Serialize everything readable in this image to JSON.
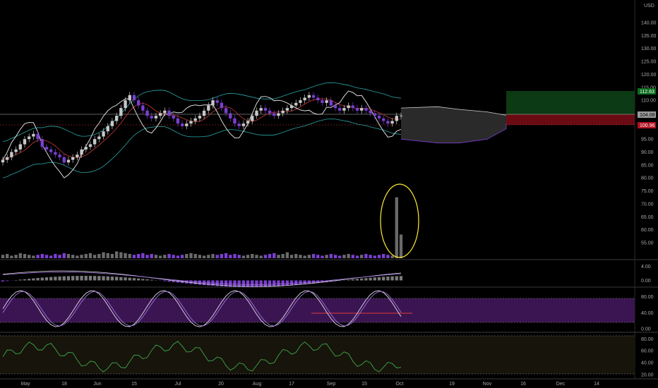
{
  "currency": "USD",
  "price_axis": {
    "ticks": [
      "140.00",
      "135.00",
      "130.00",
      "125.00",
      "120.00",
      "115.00",
      "110.00",
      "105.00",
      "100.00",
      "95.00",
      "90.00",
      "85.00",
      "80.00",
      "75.00",
      "70.00",
      "65.00",
      "60.00",
      "55.00"
    ],
    "range": [
      52,
      146
    ]
  },
  "price_tags": {
    "target": "112.63",
    "current": "104.08",
    "stop": "100.96"
  },
  "macd_axis": {
    "ticks": [
      "4.00",
      "0.00"
    ]
  },
  "stoch_axis": {
    "ticks": [
      "80.00",
      "40.00",
      "0.00"
    ]
  },
  "rsi_axis": {
    "ticks": [
      "80.00",
      "60.00",
      "40.00",
      "20.00"
    ]
  },
  "time_axis": {
    "labels": [
      "May",
      "18",
      "Jun",
      "15",
      "Jul",
      "20",
      "Aug",
      "17",
      "Sep",
      "15",
      "Oct",
      "19",
      "Nov",
      "16",
      "Dec",
      "14"
    ]
  },
  "colors": {
    "up": "#c8c8c8",
    "down": "#7b3fd1",
    "bb_upper": "#2aa7a7",
    "bb_lower": "#2aa7a7",
    "base_line": "#c83a3a",
    "conversion": "#d8d8d8",
    "cloud": "#2a2a2a",
    "profit_zone": "#0b3a14",
    "loss_zone": "#6a0b14",
    "stoch_band": "#3b1552",
    "rsi_band": "#17140b",
    "rsi_line": "#3ea84a",
    "annotation": "#ffee33"
  },
  "chart_data": [
    {
      "type": "candlestick",
      "title": "",
      "currency": "USD",
      "x_labels": [
        "May",
        "18",
        "Jun",
        "15",
        "Jul",
        "20",
        "Aug",
        "17",
        "Sep",
        "15",
        "Oct"
      ],
      "close_series": [
        87,
        88,
        90,
        91,
        93,
        95,
        96,
        97,
        95,
        92,
        91,
        90,
        89,
        88,
        86,
        87,
        88,
        89,
        91,
        92,
        93,
        95,
        96,
        98,
        100,
        102,
        104,
        107,
        110,
        112,
        110,
        108,
        106,
        104,
        103,
        104,
        105,
        106,
        104,
        103,
        101,
        100,
        101,
        102,
        103,
        104,
        106,
        108,
        110,
        109,
        107,
        105,
        103,
        101,
        100,
        101,
        102,
        104,
        106,
        107,
        106,
        105,
        104,
        105,
        106,
        107,
        108,
        109,
        110,
        111,
        112,
        111,
        110,
        109,
        110,
        108,
        107,
        106,
        107,
        108,
        107,
        106,
        107,
        106,
        105,
        104,
        103,
        102,
        101,
        102,
        104,
        104.08
      ],
      "trade_levels": {
        "target": 112.63,
        "entry": 104.08,
        "stop": 100.96
      },
      "ylim": [
        52,
        146
      ]
    },
    {
      "type": "bar",
      "name": "volume",
      "values": [
        4,
        5,
        3,
        4,
        6,
        5,
        4,
        3,
        4,
        5,
        4,
        3,
        5,
        4,
        6,
        5,
        4,
        3,
        4,
        5,
        6,
        4,
        5,
        7,
        6,
        5,
        8,
        7,
        6,
        5,
        4,
        5,
        6,
        4,
        5,
        4,
        3,
        4,
        5,
        4,
        3,
        4,
        5,
        6,
        5,
        4,
        3,
        4,
        5,
        4,
        5,
        6,
        4,
        5,
        4,
        3,
        4,
        5,
        4,
        3,
        4,
        5,
        6,
        4,
        5,
        7,
        4,
        5,
        4,
        3,
        4,
        5,
        4,
        3,
        4,
        5,
        4,
        3,
        4,
        5,
        4,
        3,
        4,
        5,
        4,
        3,
        4,
        5,
        4,
        3,
        72,
        28
      ]
    },
    {
      "type": "line",
      "name": "macd",
      "ylim": [
        -1.5,
        5.5
      ],
      "ticks": [
        4,
        0
      ]
    },
    {
      "type": "line",
      "name": "stochastic",
      "ylim": [
        -5,
        100
      ],
      "band": [
        20,
        80
      ]
    },
    {
      "type": "line",
      "name": "rsi",
      "ylim": [
        15,
        90
      ],
      "band": [
        20,
        80
      ]
    }
  ]
}
